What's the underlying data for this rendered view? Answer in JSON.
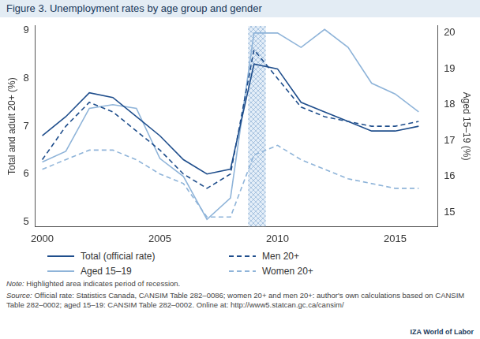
{
  "chart_data": {
    "type": "line",
    "title": "Figure 3. Unemployment rates by age group and gender",
    "y_label": "Total and adult 20+ (%)",
    "y2_label": "Aged 15–19 (%)",
    "x": [
      2000,
      2001,
      2002,
      2003,
      2004,
      2005,
      2006,
      2007,
      2008,
      2009,
      2010,
      2011,
      2012,
      2013,
      2014,
      2015,
      2016
    ],
    "series": [
      {
        "name": "Total (official rate)",
        "color": "#1f4e8c",
        "line_style": "solid",
        "marker": "none",
        "axis": "y",
        "values": [
          6.8,
          7.2,
          7.7,
          7.6,
          7.2,
          6.8,
          6.3,
          6.0,
          6.1,
          8.3,
          8.2,
          7.5,
          7.3,
          7.1,
          6.9,
          6.9,
          7.0
        ]
      },
      {
        "name": "Men 20+",
        "color": "#1f4e8c",
        "line_style": "dashed",
        "marker": "none",
        "axis": "y",
        "values": [
          6.3,
          7.0,
          7.5,
          7.3,
          6.9,
          6.5,
          6.0,
          5.7,
          6.0,
          8.6,
          8.0,
          7.4,
          7.2,
          7.1,
          7.0,
          7.0,
          7.1
        ]
      },
      {
        "name": "Aged 15–19",
        "color": "#8fb4d9",
        "line_style": "solid",
        "marker": "none",
        "axis": "y2",
        "values": [
          16.4,
          16.7,
          17.9,
          18.0,
          17.9,
          16.5,
          16.0,
          14.8,
          15.4,
          20.0,
          20.0,
          19.6,
          20.1,
          19.6,
          18.6,
          18.3,
          17.8
        ]
      },
      {
        "name": "Women 20+",
        "color": "#8fb4d9",
        "line_style": "dashed",
        "marker": "none",
        "axis": "y",
        "values": [
          6.1,
          6.3,
          6.5,
          6.5,
          6.3,
          6.0,
          5.8,
          5.1,
          5.1,
          6.4,
          6.6,
          6.3,
          6.1,
          5.9,
          5.8,
          5.7,
          5.7
        ]
      }
    ],
    "xlim": [
      1999.7,
      2016.8
    ],
    "xticks": [
      2000,
      2005,
      2010,
      2015
    ],
    "ylim": [
      4.9,
      9.1
    ],
    "yticks": [
      5,
      6,
      7,
      8,
      9
    ],
    "y2lim": [
      14.6,
      20.2
    ],
    "y2ticks": [
      15,
      16,
      17,
      18,
      19,
      20
    ],
    "recession": [
      2008.75,
      2009.5
    ],
    "grid": false,
    "legend": "bottom",
    "note_label": "Note:",
    "note": "Highlighted area indicates period of recession.",
    "source_label": "Source:",
    "source": "Official rate: Statistics Canada, CANSIM Table 282–0086; women 20+ and men 20+: author's own calculations based on CANSIM Table 282–0002; aged 15–19: CANSIM Table 282–0002. Online at: http://www5.statcan.gc.ca/cansim/",
    "logo": "IZA World of Labor"
  }
}
